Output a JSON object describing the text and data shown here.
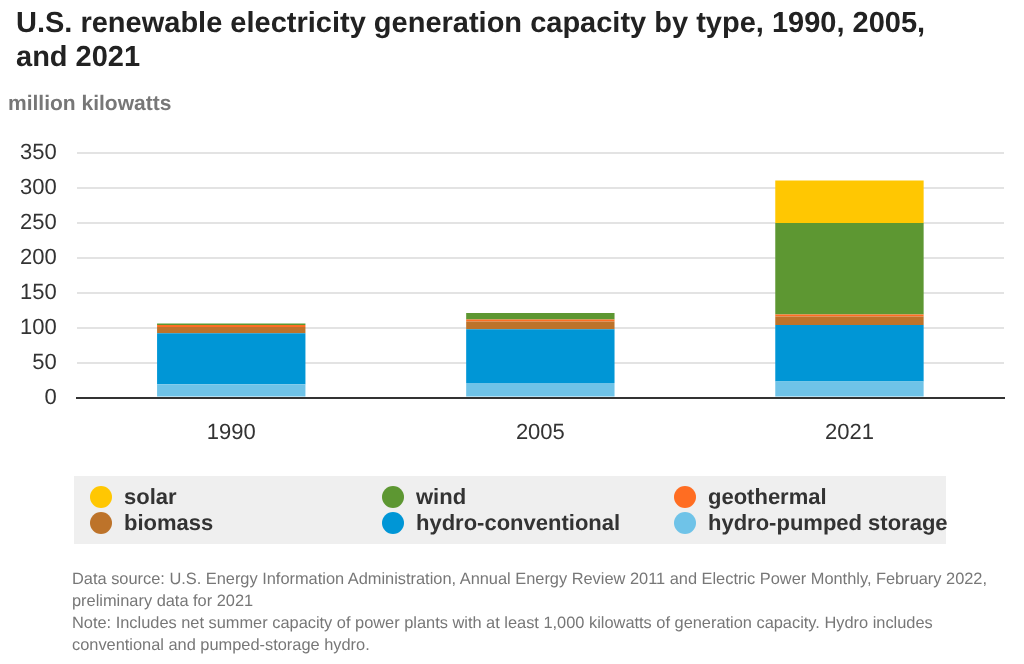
{
  "chart_data": {
    "type": "bar",
    "title": "U.S. renewable electricity generation capacity by type, 1990, 2005, and 2021",
    "ylabel": "million kilowatts",
    "categories": [
      "1990",
      "2005",
      "2021"
    ],
    "stacked": true,
    "series": [
      {
        "name": "hydro-pumped storage",
        "color": "#6fc3e8",
        "values": [
          19,
          21,
          23
        ]
      },
      {
        "name": "hydro-conventional",
        "color": "#0096d6",
        "values": [
          73,
          77,
          81
        ]
      },
      {
        "name": "biomass",
        "color": "#bd732a",
        "values": [
          9,
          11,
          12
        ]
      },
      {
        "name": "geothermal",
        "color": "#ff6d22",
        "values": [
          3,
          3,
          3
        ]
      },
      {
        "name": "wind",
        "color": "#5d9732",
        "values": [
          2,
          9,
          131
        ]
      },
      {
        "name": "solar",
        "color": "#ffc702",
        "values": [
          0,
          0,
          61
        ]
      }
    ],
    "ylim": [
      0,
      350
    ],
    "yticks": [
      0,
      50,
      100,
      150,
      200,
      250,
      300,
      350
    ],
    "grid": "y",
    "legend": "bottom",
    "annotations": [
      "Data source: U.S. Energy Information Administration, Annual Energy Review 2011 and Electric Power Monthly, February 2022, preliminary data for 2021",
      "Note: Includes net summer capacity of power plants with at least 1,000 kilowatts of generation capacity. Hydro includes conventional and pumped-storage hydro."
    ]
  }
}
